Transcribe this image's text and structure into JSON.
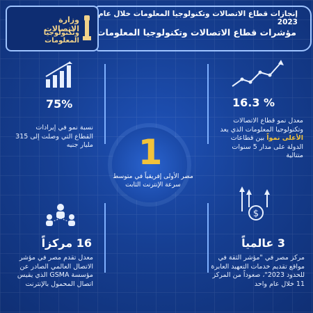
{
  "header": {
    "title": "إنجازات قطاع الاتصالات وتكنولوجيا المعلومات خلال عام 2023",
    "subtitle": "مؤشرات قطاع الاتصالات وتكنولوجيا المعلومات"
  },
  "logo": {
    "line1": "وزارة الاتصالات",
    "line2": "وتكنولوجيا المعلومات"
  },
  "stats": {
    "growth_revenue": {
      "value": "75%",
      "description": "نسبة نمو في إيرادات القطاع التي وصلت إلى 315 مليار جنيه"
    },
    "growth_sector": {
      "value": "16.3 %",
      "description_before": "معدل نمو قطاع الاتصالات وتكنولوجيا المعلومات الذي يعد",
      "highlight": "الأعلى نمواً",
      "description_after": "بين قطاعات الدولة على مدار 5 سنوات متتالية"
    },
    "africa_first": {
      "value": "1",
      "description": "مصر الأولى إفريقياً في متوسط سرعة الإنترنت الثابت"
    },
    "gsma_rank": {
      "value": "16 مركزاً",
      "description": "معدل تقدم مصر في مؤشر الاتصال العالمي الصادر عن مؤسسة GSMA الذي يقيس اتصال المحمول بالإنترنت"
    },
    "global_rank": {
      "value": "3 عالمياً",
      "description": "مركز مصر في \"مؤشر الثقة في مواقع تقديم خدمات التعهيد العابرة للحدود 2023\"، صعوداً من المركز 11 خلال عام واحد"
    }
  },
  "colors": {
    "background": "#163f93",
    "accent_gold": "#f2c23a",
    "frame": "#9fc4ff"
  },
  "icons": {
    "bar_chart": "bar-chart-icon",
    "line_chart": "line-chart-icon",
    "people": "people-network-icon",
    "money_arrows": "money-arrows-icon"
  }
}
